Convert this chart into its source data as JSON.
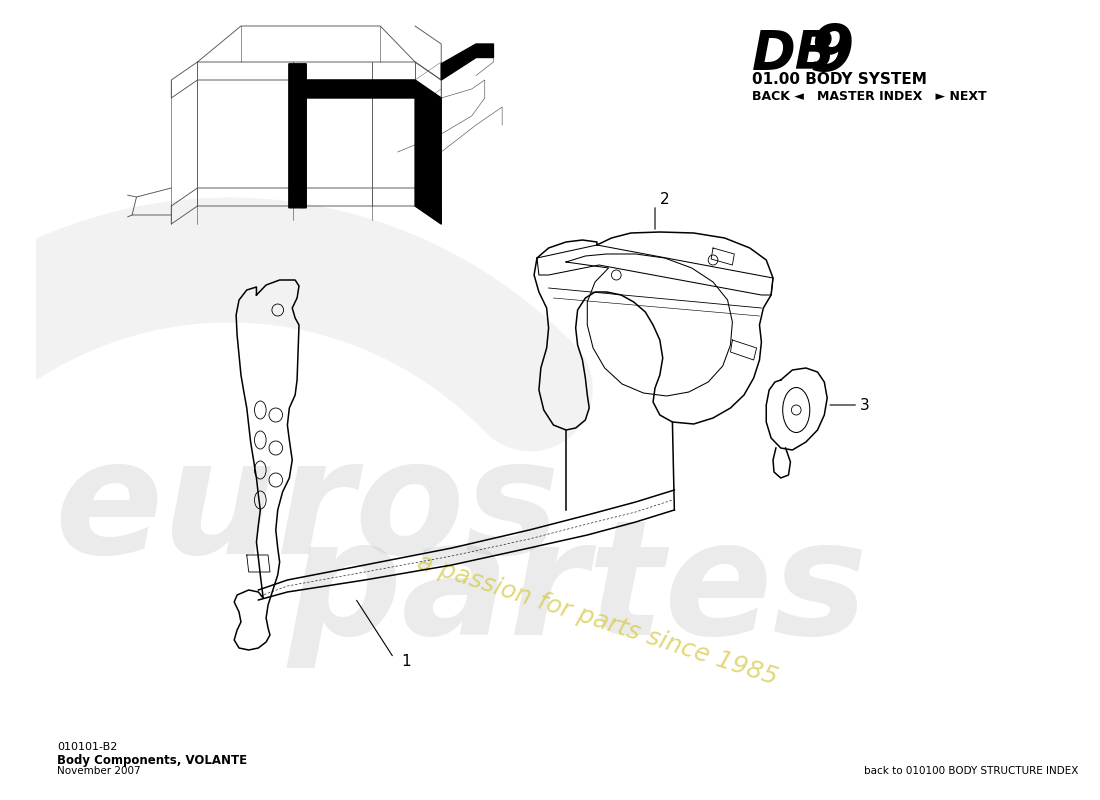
{
  "title_db": "DB",
  "title_9": "9",
  "subtitle": "01.00 BODY SYSTEM",
  "nav_text": "BACK ◄   MASTER INDEX   ► NEXT",
  "part_number": "010101-B2",
  "part_name": "Body Components, VOLANTE",
  "date": "November 2007",
  "back_link": "back to 010100 BODY STRUCTURE INDEX",
  "bg_color": "#ffffff",
  "text_color": "#000000",
  "label_1": "1",
  "label_2": "2",
  "label_3": "3",
  "watermark_text1": "eurospartes",
  "watermark_text2": "a passion for parts since 1985"
}
